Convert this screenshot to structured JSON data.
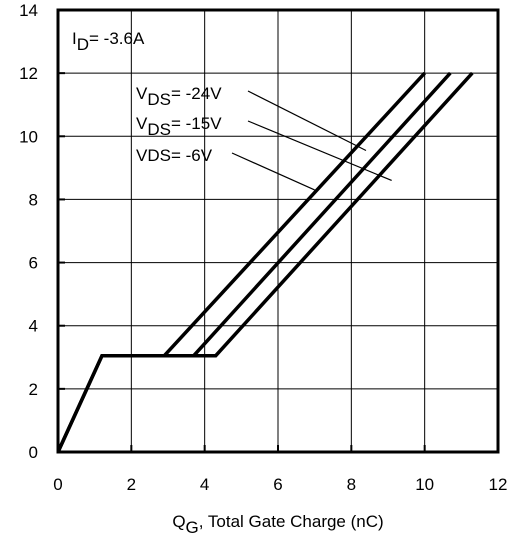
{
  "chart_data": {
    "type": "line",
    "title": "",
    "xlabel": {
      "main": "Q",
      "sub": "G",
      "rest": ",  Total Gate Charge (nC)"
    },
    "ylabel": "",
    "xlim": [
      0,
      12
    ],
    "ylim": [
      0,
      14
    ],
    "xticks": [
      "0",
      "2",
      "4",
      "6",
      "8",
      "10",
      "12"
    ],
    "yticks": [
      "0",
      "2",
      "4",
      "6",
      "8",
      "10",
      "12",
      "14"
    ],
    "grid": true,
    "legend_position": "",
    "annotations": {
      "id": {
        "main": "I",
        "sub": "D",
        "rest": "= -3.6A"
      },
      "labels": [
        {
          "main": "V",
          "sub": "DS",
          "rest": "= -24V"
        },
        {
          "main": "V",
          "sub": "DS",
          "rest": "= -15V"
        },
        {
          "main": "VDS",
          "sub": "",
          "rest": "= -6V"
        }
      ]
    },
    "series": [
      {
        "name": "VDS= -6V",
        "x": [
          0,
          1.2,
          4.3,
          11.3
        ],
        "y": [
          0,
          3.05,
          3.05,
          12
        ]
      },
      {
        "name": "VDS= -15V",
        "x": [
          0,
          1.2,
          3.7,
          10.7
        ],
        "y": [
          0,
          3.05,
          3.05,
          12
        ]
      },
      {
        "name": "VDS= -24V",
        "x": [
          2.9,
          10.0
        ],
        "y": [
          3.05,
          12
        ]
      }
    ]
  }
}
